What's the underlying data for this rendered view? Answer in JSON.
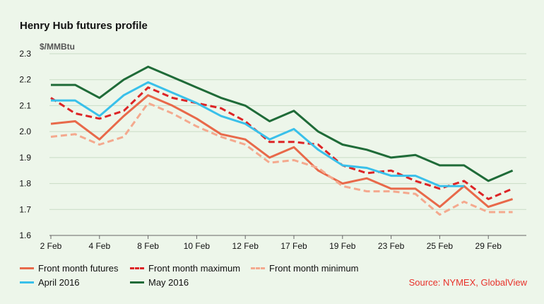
{
  "chart_data": {
    "type": "line",
    "title": "Henry Hub futures profile",
    "ylabel": "$/MMBtu",
    "xlabel": "",
    "ylim": [
      1.6,
      2.3
    ],
    "yticks": [
      "1.6",
      "1.7",
      "1.8",
      "1.9",
      "2.0",
      "2.1",
      "2.2",
      "2.3"
    ],
    "x": [
      "2 Feb",
      "3 Feb",
      "4 Feb",
      "5 Feb",
      "8 Feb",
      "9 Feb",
      "10 Feb",
      "11 Feb",
      "12 Feb",
      "16 Feb",
      "17 Feb",
      "18 Feb",
      "19 Feb",
      "22 Feb",
      "23 Feb",
      "24 Feb",
      "25 Feb",
      "26 Feb",
      "29 Feb",
      "1 Mar"
    ],
    "xtick_labels": [
      "2 Feb",
      "4 Feb",
      "8 Feb",
      "10 Feb",
      "12 Feb",
      "17 Feb",
      "19 Feb",
      "23 Feb",
      "25 Feb",
      "29 Feb"
    ],
    "grid": true,
    "legend_position": "bottom",
    "series": [
      {
        "name": "Front month futures",
        "color": "#e8694a",
        "style": "solid",
        "values": [
          2.03,
          2.04,
          1.97,
          2.06,
          2.14,
          2.1,
          2.05,
          1.99,
          1.97,
          1.9,
          1.94,
          1.85,
          1.8,
          1.82,
          1.78,
          1.78,
          1.71,
          1.79,
          1.71,
          1.74
        ]
      },
      {
        "name": "Front month maximum",
        "color": "#dd2426",
        "style": "dashed",
        "values": [
          2.13,
          2.07,
          2.05,
          2.08,
          2.17,
          2.13,
          2.11,
          2.09,
          2.04,
          1.96,
          1.96,
          1.95,
          1.87,
          1.84,
          1.85,
          1.81,
          1.78,
          1.81,
          1.74,
          1.78
        ]
      },
      {
        "name": "Front month minimum",
        "color": "#f4a98e",
        "style": "dashed",
        "values": [
          1.98,
          1.99,
          1.95,
          1.98,
          2.11,
          2.07,
          2.02,
          1.98,
          1.95,
          1.88,
          1.89,
          1.86,
          1.79,
          1.77,
          1.77,
          1.76,
          1.68,
          1.73,
          1.69,
          1.69
        ]
      },
      {
        "name": "April 2016",
        "color": "#39c0ea",
        "style": "solid",
        "values": [
          2.12,
          2.12,
          2.06,
          2.14,
          2.19,
          2.15,
          2.11,
          2.06,
          2.03,
          1.97,
          2.01,
          1.93,
          1.87,
          1.86,
          1.83,
          1.83,
          1.79,
          1.79,
          null,
          null
        ]
      },
      {
        "name": "May 2016",
        "color": "#1f6b38",
        "style": "solid",
        "values": [
          2.18,
          2.18,
          2.13,
          2.2,
          2.25,
          2.21,
          2.17,
          2.13,
          2.1,
          2.04,
          2.08,
          2.0,
          1.95,
          1.93,
          1.9,
          1.91,
          1.87,
          1.87,
          1.81,
          1.85
        ]
      }
    ],
    "source": "Source: NYMEX, GlobalView"
  },
  "colors": {
    "background": "#edf6ea",
    "grid": "#c9dcc5",
    "axis": "#666666",
    "source": "#e8312a"
  }
}
